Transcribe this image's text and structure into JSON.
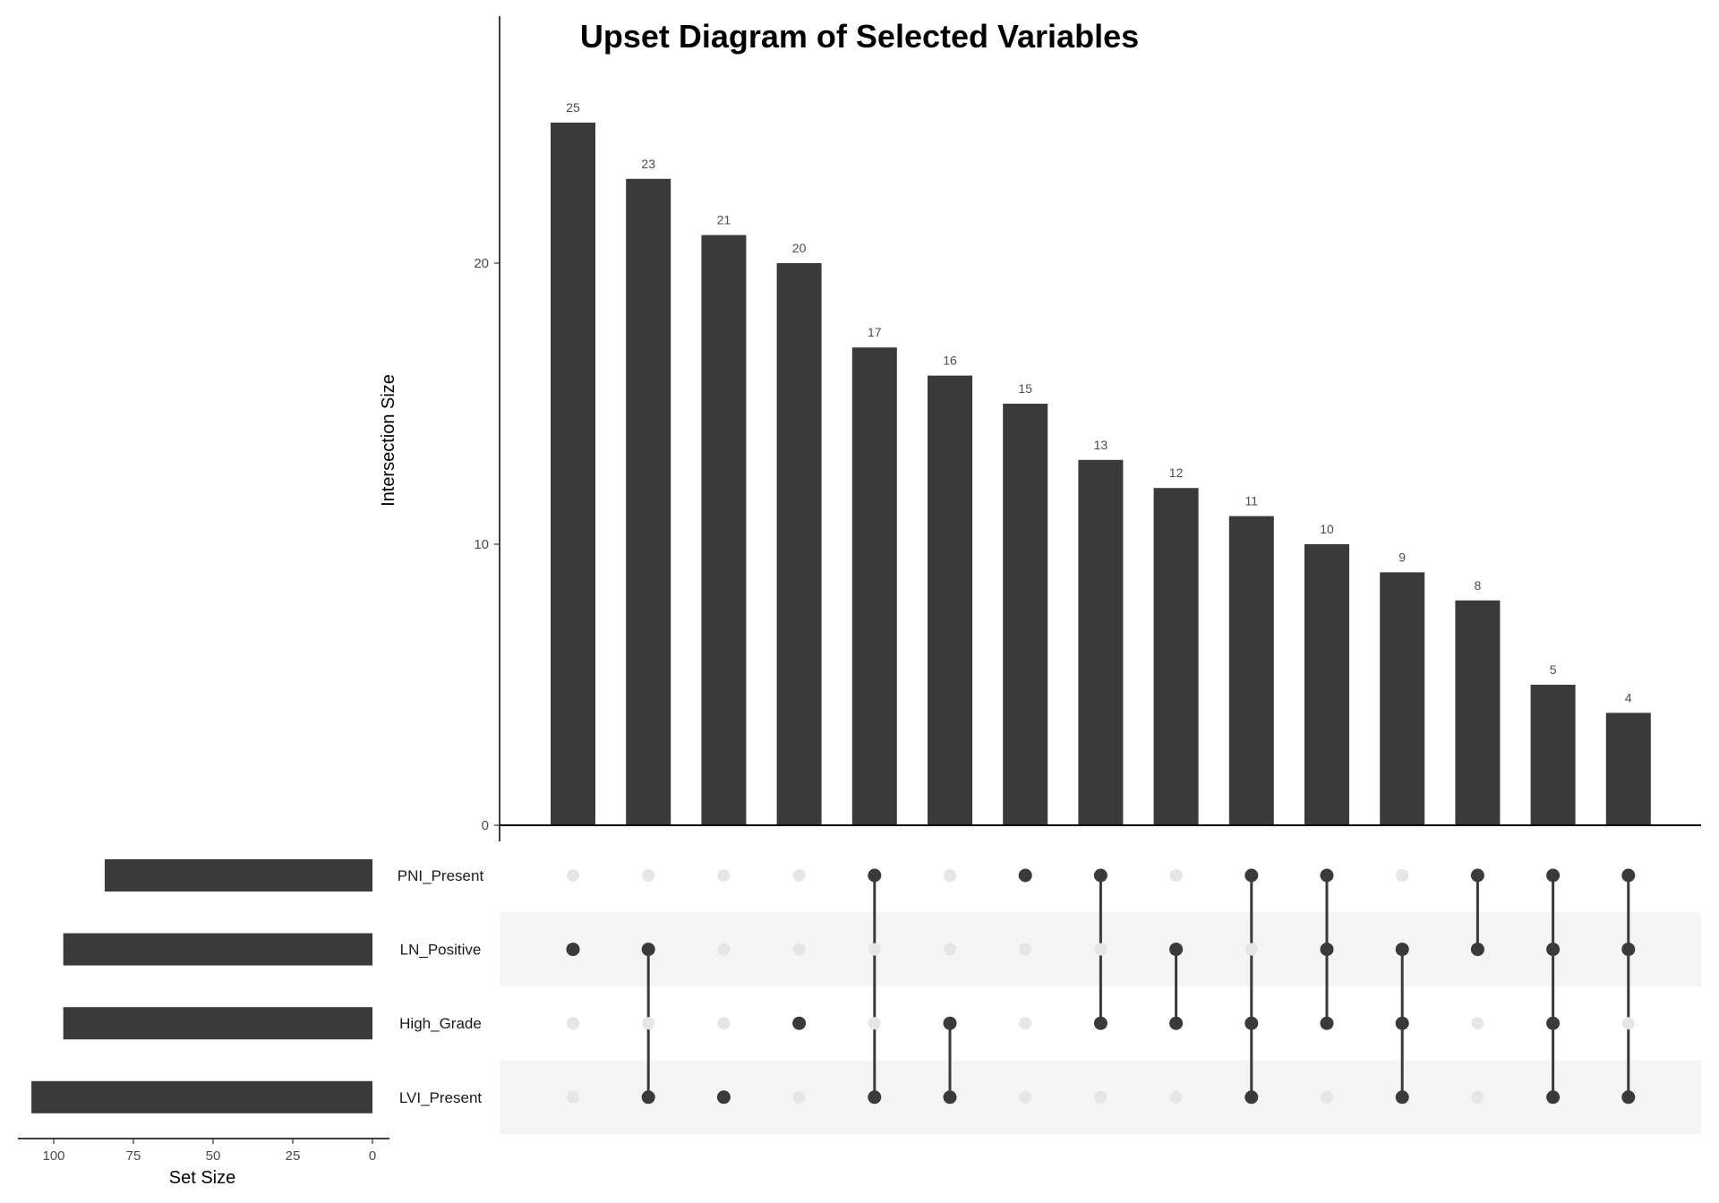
{
  "chart_data": {
    "type": "bar",
    "title": "Upset Diagram of Selected Variables",
    "intersection_axis_label": "Intersection Size",
    "set_size_axis_label": "Set Size",
    "intersection_ylim": [
      0,
      28
    ],
    "intersection_ticks": [
      0,
      10,
      20
    ],
    "set_size_xlim": [
      0,
      110
    ],
    "set_size_ticks": [
      100,
      75,
      50,
      25,
      0
    ],
    "bar_color": "#3a3a3a",
    "inactive_dot_color": "#e6e6e6",
    "stripe_color": "#f5f5f5",
    "sets": [
      {
        "name": "PNI_Present",
        "size": 84
      },
      {
        "name": "LN_Positive",
        "size": 97
      },
      {
        "name": "High_Grade",
        "size": 97
      },
      {
        "name": "LVI_Present",
        "size": 107
      }
    ],
    "intersections": [
      {
        "size": 25,
        "sets": [
          "LN_Positive"
        ]
      },
      {
        "size": 23,
        "sets": [
          "LN_Positive",
          "LVI_Present"
        ]
      },
      {
        "size": 21,
        "sets": [
          "LVI_Present"
        ]
      },
      {
        "size": 20,
        "sets": [
          "High_Grade"
        ]
      },
      {
        "size": 17,
        "sets": [
          "PNI_Present",
          "LVI_Present"
        ]
      },
      {
        "size": 16,
        "sets": [
          "High_Grade",
          "LVI_Present"
        ]
      },
      {
        "size": 15,
        "sets": [
          "PNI_Present"
        ]
      },
      {
        "size": 13,
        "sets": [
          "PNI_Present",
          "High_Grade"
        ]
      },
      {
        "size": 12,
        "sets": [
          "LN_Positive",
          "High_Grade"
        ]
      },
      {
        "size": 11,
        "sets": [
          "PNI_Present",
          "High_Grade",
          "LVI_Present"
        ]
      },
      {
        "size": 10,
        "sets": [
          "PNI_Present",
          "LN_Positive",
          "High_Grade"
        ]
      },
      {
        "size": 9,
        "sets": [
          "LN_Positive",
          "High_Grade",
          "LVI_Present"
        ]
      },
      {
        "size": 8,
        "sets": [
          "PNI_Present",
          "LN_Positive"
        ]
      },
      {
        "size": 5,
        "sets": [
          "PNI_Present",
          "LN_Positive",
          "High_Grade",
          "LVI_Present"
        ]
      },
      {
        "size": 4,
        "sets": [
          "PNI_Present",
          "LN_Positive",
          "LVI_Present"
        ]
      }
    ]
  }
}
